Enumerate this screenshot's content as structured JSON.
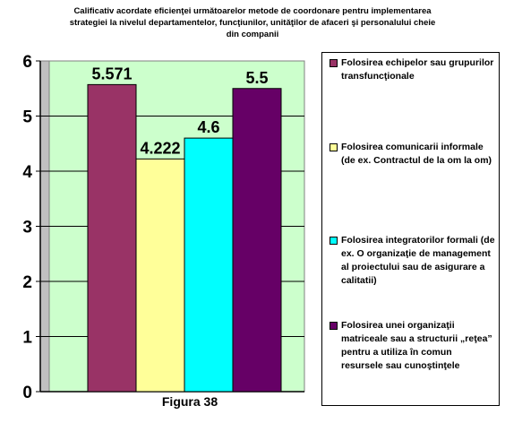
{
  "chart_data": {
    "type": "bar",
    "title_lines": [
      "Calificativ acordate eficienţei următoarelor metode de coordonare pentru implementarea",
      "strategiei la nivelul departamentelor, funcţiunilor, unităţilor de afaceri şi personalului cheie",
      "din companii"
    ],
    "xlabel": "Figura 38",
    "ylim": [
      0,
      6
    ],
    "yticks": [
      0,
      1,
      2,
      3,
      4,
      5,
      6
    ],
    "grid": true,
    "plot_background": "#ccffcc",
    "legend_position": "right",
    "series": [
      {
        "name": "Folosirea echipelor sau grupurilor transfuncţionale",
        "value": 5.571,
        "label": "5.571",
        "color": "#993366"
      },
      {
        "name": "Folosirea comunicarii informale (de ex. Contractul de la om la om)",
        "value": 4.222,
        "label": "4.222",
        "color": "#ffff99"
      },
      {
        "name": "Folosirea integratorilor formali (de ex. O organizaţie de management al proiectului sau de asigurare a calitatii)",
        "value": 4.6,
        "label": "4.6",
        "color": "#00ffff"
      },
      {
        "name": "Folosirea unei organizaţii matriceale sau a structurii „reţea” pentru a utiliza în comun resursele sau cunoştinţele",
        "value": 5.5,
        "label": "5.5",
        "color": "#660066"
      }
    ]
  }
}
